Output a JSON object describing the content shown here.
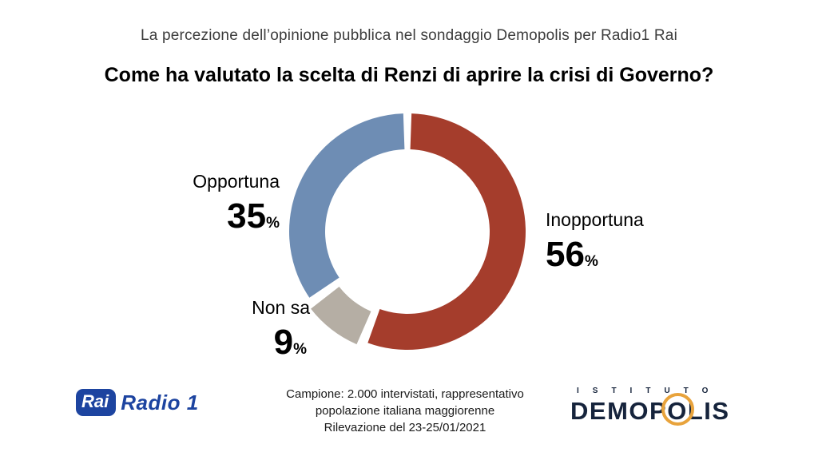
{
  "header": {
    "subtitle": "La percezione dell’opinione pubblica nel sondaggio Demopolis per Radio1 Rai",
    "title": "Come ha valutato la scelta di Renzi di aprire la crisi di Governo?"
  },
  "chart_data": {
    "type": "pie",
    "donut": true,
    "title": "Come ha valutato la scelta di Renzi di aprire la crisi di Governo?",
    "unit": "%",
    "start_angle": 0,
    "direction": "clockwise",
    "gap_deg": 4,
    "slices": [
      {
        "label": "Inopportuna",
        "value": 56,
        "color": "#a53d2c",
        "explode": 0
      },
      {
        "label": "Non sa",
        "value": 9,
        "color": "#b5aea4",
        "explode": 7
      },
      {
        "label": "Opportuna",
        "value": 35,
        "color": "#6e8db4",
        "explode": 0
      }
    ]
  },
  "footer": {
    "sample_lines": [
      "Campione: 2.000 intervistati, rappresentativo",
      "popolazione italiana maggiorenne",
      "Rilevazione del 23-25/01/2021"
    ],
    "rai_logo": {
      "box": "Rai",
      "word": "Radio 1"
    },
    "demopolis_logo": {
      "top": "ISTITUTO",
      "name_pre": "DEMOP",
      "name_o": "O",
      "name_post": "LIS"
    }
  }
}
